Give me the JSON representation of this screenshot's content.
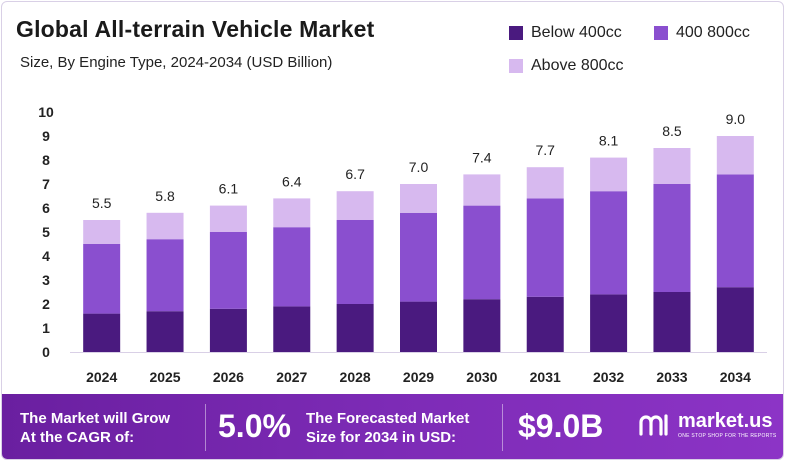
{
  "header": {
    "title": "Global All-terrain Vehicle Market",
    "subtitle": "Size, By Engine Type, 2024-2034 (USD Billion)"
  },
  "legend": [
    {
      "label": "Below 400cc",
      "color": "#4a1a7f"
    },
    {
      "label": "400 800cc",
      "color": "#8a4fcf"
    },
    {
      "label": "Above 800cc",
      "color": "#d7b9ef"
    }
  ],
  "chart_data": {
    "type": "bar",
    "stacked": true,
    "title": "Global All-terrain Vehicle Market",
    "subtitle": "Size, By Engine Type, 2024-2034 (USD Billion)",
    "categories": [
      "2024",
      "2025",
      "2026",
      "2027",
      "2028",
      "2029",
      "2030",
      "2031",
      "2032",
      "2033",
      "2034"
    ],
    "series": [
      {
        "name": "Below 400cc",
        "color": "#4a1a7f",
        "values": [
          1.6,
          1.7,
          1.8,
          1.9,
          2.0,
          2.1,
          2.2,
          2.3,
          2.4,
          2.5,
          2.7
        ]
      },
      {
        "name": "400 800cc",
        "color": "#8a4fcf",
        "values": [
          2.9,
          3.0,
          3.2,
          3.3,
          3.5,
          3.7,
          3.9,
          4.1,
          4.3,
          4.5,
          4.7
        ]
      },
      {
        "name": "Above 800cc",
        "color": "#d7b9ef",
        "values": [
          1.0,
          1.1,
          1.1,
          1.2,
          1.2,
          1.2,
          1.3,
          1.3,
          1.4,
          1.5,
          1.6
        ]
      }
    ],
    "totals": [
      "5.5",
      "5.8",
      "6.1",
      "6.4",
      "6.7",
      "7.0",
      "7.4",
      "7.7",
      "8.1",
      "8.5",
      "9.0"
    ],
    "yticks": [
      "0",
      "1",
      "2",
      "3",
      "4",
      "5",
      "6",
      "7",
      "8",
      "9",
      "10"
    ],
    "ylim": [
      0,
      10
    ],
    "xlabel": "",
    "ylabel": "",
    "legend_position": "top-right"
  },
  "footer": {
    "cagr_line1": "The Market will Grow",
    "cagr_line2": "At the CAGR of:",
    "cagr_value": "5.0%",
    "forecast_line1": "The Forecasted Market",
    "forecast_line2": "Size for 2034 in USD:",
    "forecast_value": "$9.0B",
    "brand_name": "market.us",
    "brand_tagline": "ONE STOP SHOP FOR THE REPORTS"
  }
}
